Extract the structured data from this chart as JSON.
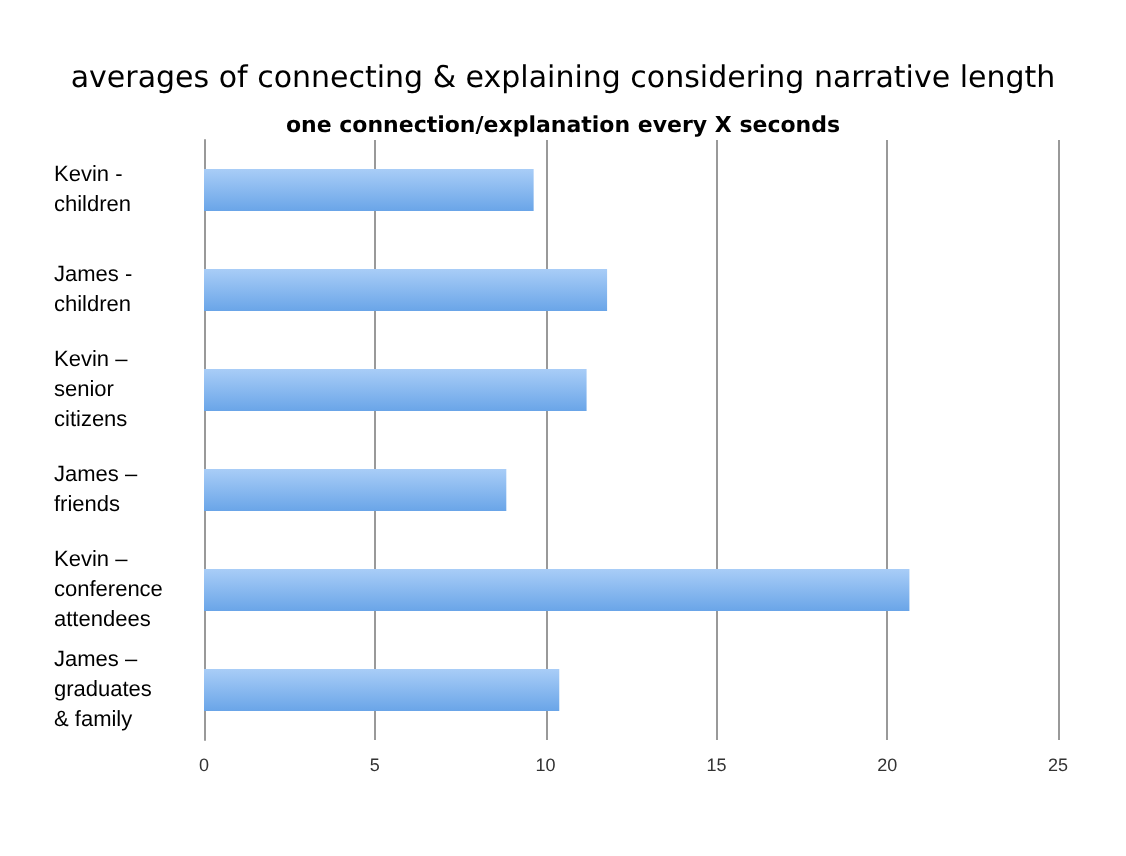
{
  "chart_data": {
    "type": "bar",
    "orientation": "horizontal",
    "title": "averages of connecting & explaining considering narrative length",
    "subtitle": "one connection/explanation every X seconds",
    "categories": [
      "Kevin -\nchildren",
      "James -\nchildren",
      "Kevin –\nsenior\ncitizens",
      "James –\nfriends",
      "Kevin –\nconference\nattendees",
      "James –\ngraduates\n& family"
    ],
    "values": [
      9.65,
      11.8,
      11.2,
      8.85,
      20.65,
      10.4
    ],
    "color": "#6aa5e8",
    "xlim": [
      0,
      25
    ],
    "xticks": [
      0,
      5,
      10,
      15,
      20,
      25
    ],
    "grid": "x"
  }
}
